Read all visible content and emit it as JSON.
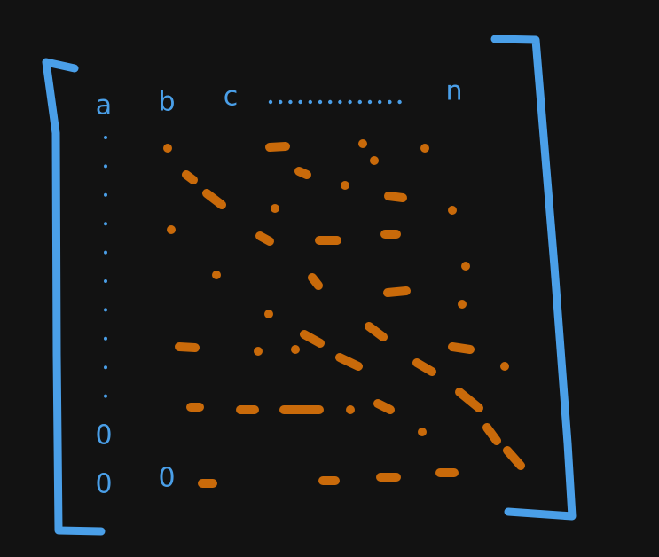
{
  "header": [
    "a",
    "b",
    "c",
    "n"
  ],
  "zeros": [
    "0",
    "0",
    "0"
  ]
}
